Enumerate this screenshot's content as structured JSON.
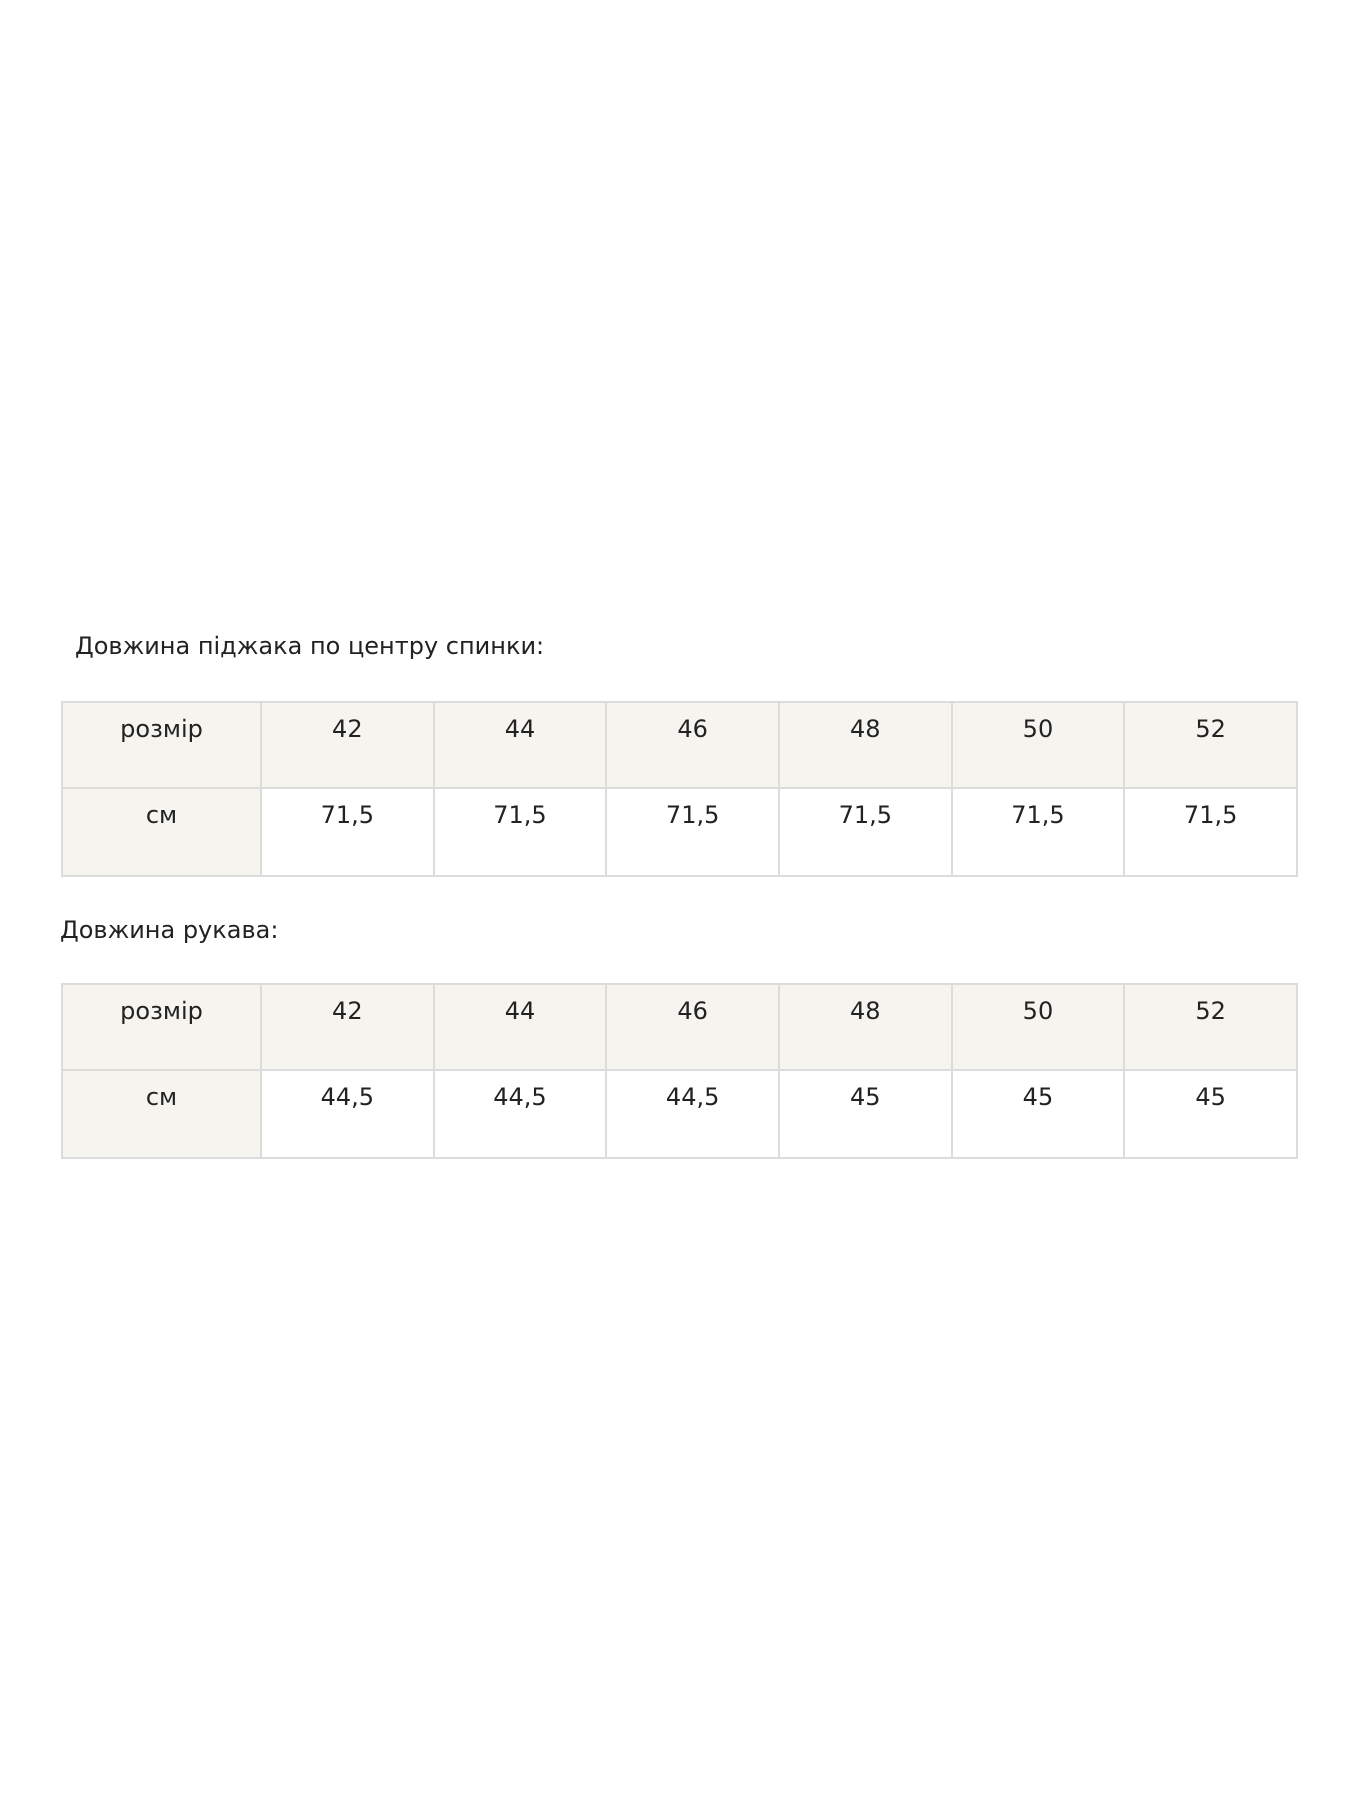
{
  "tables": [
    {
      "title": "Довжина піджака по центру спинки:",
      "header_label": "розмір",
      "sizes": [
        "42",
        "44",
        "46",
        "48",
        "50",
        "52"
      ],
      "row_label": "см",
      "values": [
        "71,5",
        "71,5",
        "71,5",
        "71,5",
        "71,5",
        "71,5"
      ]
    },
    {
      "title": "Довжина рукава:",
      "header_label": "розмір",
      "sizes": [
        "42",
        "44",
        "46",
        "48",
        "50",
        "52"
      ],
      "row_label": "см",
      "values": [
        "44,5",
        "44,5",
        "44,5",
        "45",
        "45",
        "45"
      ]
    }
  ]
}
